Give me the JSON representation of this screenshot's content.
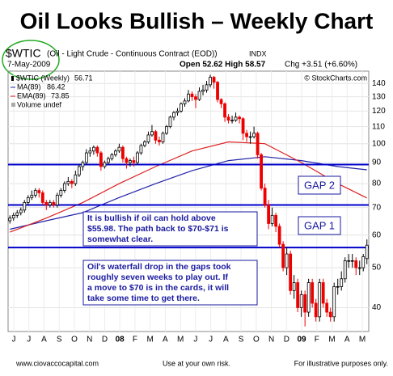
{
  "chart_data": {
    "type": "candlestick",
    "title": "Oil Looks Bullish – Weekly Chart",
    "header": {
      "symbol": "$WTIC",
      "description": "(Oil - Light Crude - Continuous Contract (EOD))",
      "exchange": "INDX",
      "date": "7-May-2009",
      "quote": "Open 52.62  High 58.57",
      "change": "Chg +3.51 (+6.60%)"
    },
    "copyright": "© StockCharts.com",
    "price_name": "$WTIC (Weekly)",
    "volume_label": "Volume undef",
    "up_color": "#000000",
    "down_color": "#ee0000",
    "log_scale": true,
    "grid": true,
    "ylim": [
      35,
      150
    ],
    "yticks": [
      40,
      50,
      60,
      70,
      80,
      90,
      100,
      110,
      120,
      130,
      140
    ],
    "xlabels": [
      "J",
      "J",
      "A",
      "S",
      "O",
      "N",
      "D",
      "08",
      "F",
      "M",
      "A",
      "M",
      "J",
      "J",
      "A",
      "S",
      "O",
      "N",
      "D",
      "09",
      "F",
      "M",
      "A",
      "M"
    ],
    "ohlc": [
      [
        65,
        67,
        64,
        66
      ],
      [
        66,
        68,
        65,
        67
      ],
      [
        67,
        69,
        66,
        68
      ],
      [
        68,
        70,
        67,
        69
      ],
      [
        69,
        73,
        68,
        72
      ],
      [
        72,
        75,
        71,
        74
      ],
      [
        74,
        77,
        73,
        75
      ],
      [
        75,
        78,
        74,
        77
      ],
      [
        77,
        78,
        74,
        76
      ],
      [
        76,
        77,
        71,
        72
      ],
      [
        72,
        73,
        69,
        71
      ],
      [
        71,
        73,
        70,
        72
      ],
      [
        72,
        73,
        70,
        71
      ],
      [
        71,
        76,
        70,
        75
      ],
      [
        75,
        78,
        74,
        77
      ],
      [
        77,
        81,
        76,
        80
      ],
      [
        80,
        83,
        79,
        81
      ],
      [
        81,
        82,
        78,
        80
      ],
      [
        80,
        86,
        79,
        84
      ],
      [
        84,
        89,
        83,
        88
      ],
      [
        88,
        91,
        86,
        90
      ],
      [
        90,
        97,
        89,
        95
      ],
      [
        95,
        98,
        93,
        96
      ],
      [
        96,
        99,
        94,
        98
      ],
      [
        98,
        99,
        93,
        95
      ],
      [
        95,
        96,
        86,
        88
      ],
      [
        88,
        91,
        87,
        90
      ],
      [
        90,
        93,
        89,
        92
      ],
      [
        92,
        95,
        91,
        94
      ],
      [
        94,
        97,
        93,
        96
      ],
      [
        96,
        100,
        95,
        98
      ],
      [
        98,
        99,
        90,
        92
      ],
      [
        92,
        93,
        87,
        90
      ],
      [
        90,
        92,
        88,
        91
      ],
      [
        91,
        93,
        88,
        90
      ],
      [
        90,
        96,
        89,
        95
      ],
      [
        95,
        100,
        94,
        99
      ],
      [
        99,
        102,
        98,
        101
      ],
      [
        101,
        107,
        100,
        105
      ],
      [
        105,
        111,
        104,
        107
      ],
      [
        107,
        108,
        100,
        102
      ],
      [
        102,
        104,
        99,
        101
      ],
      [
        101,
        107,
        100,
        106
      ],
      [
        106,
        111,
        105,
        110
      ],
      [
        110,
        117,
        109,
        116
      ],
      [
        116,
        120,
        114,
        119
      ],
      [
        119,
        122,
        117,
        120
      ],
      [
        120,
        126,
        119,
        125
      ],
      [
        125,
        129,
        123,
        127
      ],
      [
        127,
        135,
        126,
        132
      ],
      [
        132,
        134,
        127,
        130
      ],
      [
        130,
        132,
        122,
        128
      ],
      [
        128,
        137,
        127,
        134
      ],
      [
        134,
        139,
        131,
        135
      ],
      [
        135,
        142,
        133,
        139
      ],
      [
        139,
        147,
        137,
        145
      ],
      [
        145,
        146,
        136,
        141
      ],
      [
        141,
        142,
        126,
        128
      ],
      [
        128,
        129,
        122,
        125
      ],
      [
        125,
        126,
        113,
        116
      ],
      [
        116,
        118,
        112,
        114
      ],
      [
        114,
        117,
        112,
        114
      ],
      [
        114,
        119,
        113,
        116
      ],
      [
        116,
        117,
        112,
        115
      ],
      [
        115,
        116,
        102,
        106
      ],
      [
        106,
        108,
        101,
        104
      ],
      [
        104,
        107,
        100,
        104
      ],
      [
        104,
        110,
        103,
        106
      ],
      [
        106,
        107,
        92,
        94
      ],
      [
        94,
        95,
        77,
        78
      ],
      [
        78,
        80,
        70,
        71
      ],
      [
        71,
        73,
        62,
        64
      ],
      [
        64,
        70,
        63,
        67
      ],
      [
        67,
        68,
        61,
        63
      ],
      [
        63,
        64,
        56,
        57
      ],
      [
        57,
        58,
        49,
        50
      ],
      [
        50,
        56,
        48,
        54
      ],
      [
        54,
        55,
        43,
        44
      ],
      [
        44,
        48,
        42,
        46
      ],
      [
        46,
        47,
        39,
        40
      ],
      [
        40,
        44,
        38,
        43
      ],
      [
        43,
        44,
        36,
        39
      ],
      [
        39,
        47,
        38,
        46
      ],
      [
        46,
        47,
        40,
        41
      ],
      [
        41,
        42,
        37,
        38
      ],
      [
        38,
        47,
        37,
        46
      ],
      [
        46,
        47,
        40,
        41
      ],
      [
        41,
        42,
        38,
        39
      ],
      [
        39,
        40,
        37,
        38
      ],
      [
        38,
        46,
        37,
        45
      ],
      [
        45,
        47,
        43,
        45
      ],
      [
        45,
        49,
        44,
        47
      ],
      [
        47,
        53,
        46,
        52
      ],
      [
        52,
        54,
        50,
        52
      ],
      [
        52,
        54,
        50,
        52
      ],
      [
        52,
        53,
        48,
        50
      ],
      [
        50,
        52,
        48,
        50
      ],
      [
        50,
        54,
        49,
        53.2
      ],
      [
        52.62,
        58.57,
        51,
        56.71
      ]
    ],
    "series": [
      {
        "name": "MA(89)",
        "color": "#2222aa",
        "x": [
          0,
          10,
          20,
          30,
          40,
          50,
          60,
          70,
          80,
          90,
          98
        ],
        "values": [
          62,
          65,
          68,
          74,
          80,
          86,
          91,
          93,
          91,
          88,
          86.42
        ]
      },
      {
        "name": "EMA(89)",
        "color": "#dd2222",
        "x": [
          0,
          10,
          20,
          30,
          40,
          50,
          60,
          70,
          80,
          90,
          98
        ],
        "values": [
          61,
          66,
          72,
          80,
          88,
          96,
          101,
          100,
          90,
          80,
          73.85
        ]
      }
    ],
    "levels": [
      89,
      71,
      55.98
    ],
    "level_color": "#0000cc",
    "gap_labels": [
      "GAP 2",
      "GAP 1"
    ],
    "note1": [
      "It is bullish if oil can hold above",
      "$55.98.  The path back to $70-$71 is",
      "somewhat clear."
    ],
    "note2": [
      "Oil's waterfall drop in the gaps took",
      "roughly seven weeks to play out.  If",
      "a move to $70 is in the cards, it will",
      "take some time to get there."
    ],
    "footer": [
      "www.ciovaccocapital.com",
      "Use at your own risk.",
      "For illustrative purposes only."
    ]
  }
}
